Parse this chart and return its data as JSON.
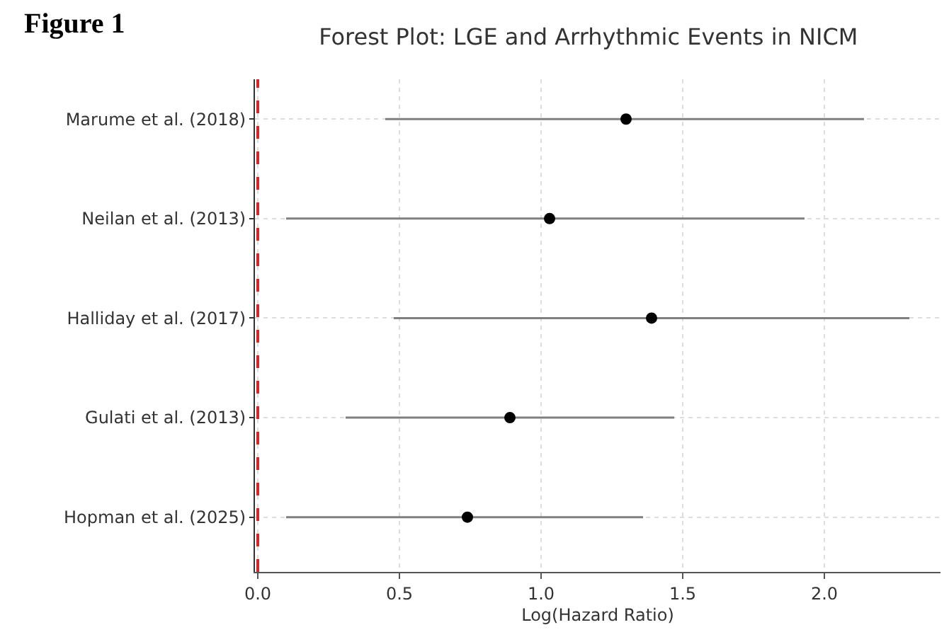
{
  "chart_data": {
    "type": "scatter",
    "title": "Forest Plot: LGE and Arrhythmic Events in NICM",
    "xlabel": "Log(Hazard Ratio)",
    "orientation": "horizontal",
    "categories": [
      "Marume et al. (2018)",
      "Neilan et al. (2013)",
      "Halliday et al. (2017)",
      "Gulati et al. (2013)",
      "Hopman et al. (2025)"
    ],
    "values": [
      1.3,
      1.03,
      1.39,
      0.89,
      0.74
    ],
    "errors": [
      [
        0.45,
        2.14
      ],
      [
        0.1,
        1.93
      ],
      [
        0.48,
        2.3
      ],
      [
        0.31,
        1.47
      ],
      [
        0.1,
        1.36
      ]
    ],
    "color": "#000000",
    "marker": "circle",
    "xlim": [
      -0.01,
      2.41
    ],
    "xticks": [
      {
        "value": 0,
        "label": "0.0"
      },
      0.5,
      {
        "value": 1,
        "label": "1.0"
      },
      1.5,
      {
        "value": 2,
        "label": "2.0"
      }
    ],
    "ref_lines": [
      {
        "axis": "x",
        "value": 0,
        "color": "#d62728",
        "line_style": "dashed"
      }
    ],
    "grid": true,
    "legend": false,
    "annotations": [
      "Figure 1"
    ]
  }
}
